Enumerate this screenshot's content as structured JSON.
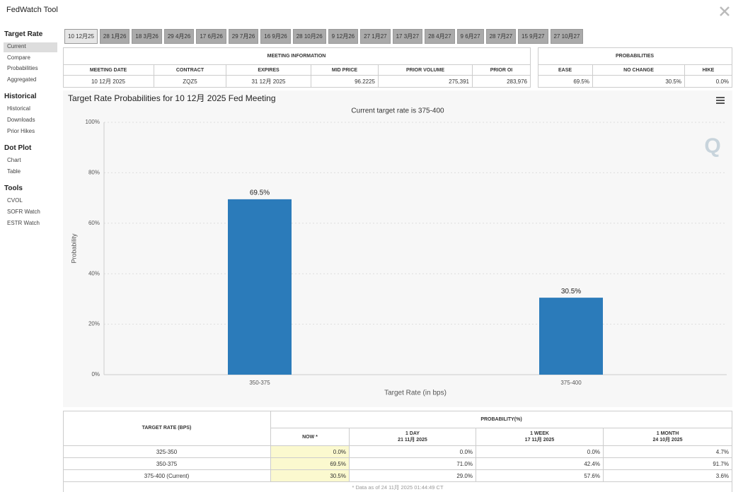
{
  "header": {
    "title": "FedWatch Tool"
  },
  "sidebar": [
    {
      "heading": "Target Rate",
      "items": [
        "Current",
        "Compare",
        "Probabilities",
        "Aggregated"
      ]
    },
    {
      "heading": "Historical",
      "items": [
        "Historical",
        "Downloads",
        "Prior Hikes"
      ]
    },
    {
      "heading": "Dot Plot",
      "items": [
        "Chart",
        "Table"
      ]
    },
    {
      "heading": "Tools",
      "items": [
        "CVOL",
        "SOFR Watch",
        "ESTR Watch"
      ]
    }
  ],
  "tabs": [
    "10 12月25",
    "28 1月26",
    "18 3月26",
    "29 4月26",
    "17 6月26",
    "29 7月26",
    "16 9月26",
    "28 10月26",
    "9 12月26",
    "27 1月27",
    "17 3月27",
    "28 4月27",
    "9 6月27",
    "28 7月27",
    "15 9月27",
    "27 10月27"
  ],
  "meeting_info": {
    "title": "MEETING INFORMATION",
    "columns": [
      "MEETING DATE",
      "CONTRACT",
      "EXPIRES",
      "MID PRICE",
      "PRIOR VOLUME",
      "PRIOR OI"
    ],
    "row": [
      "10 12月 2025",
      "ZQZ5",
      "31 12月 2025",
      "96.2225",
      "275,391",
      "283,976"
    ]
  },
  "probabilities": {
    "title": "PROBABILITIES",
    "columns": [
      "EASE",
      "NO CHANGE",
      "HIKE"
    ],
    "row": [
      "69.5%",
      "30.5%",
      "0.0%"
    ]
  },
  "chart_data": {
    "type": "bar",
    "title": "Target Rate Probabilities for 10 12月 2025 Fed Meeting",
    "subtitle": "Current target rate is 375-400",
    "x_label": "Target Rate (in bps)",
    "y_label": "Probability",
    "categories": [
      "350-375",
      "375-400"
    ],
    "values": [
      69.5,
      30.5
    ],
    "value_labels": [
      "69.5%",
      "30.5%"
    ],
    "color": "#2b7bba",
    "ylim": [
      0,
      100
    ],
    "yticks": [
      {
        "value": 0,
        "label": "0%"
      },
      {
        "value": 20,
        "label": "20%"
      },
      {
        "value": 40,
        "label": "40%"
      },
      {
        "value": 60,
        "label": "60%"
      },
      {
        "value": 80,
        "label": "80%"
      },
      {
        "value": 100,
        "label": "100%"
      }
    ],
    "grid": true
  },
  "probability_table": {
    "row_header": "TARGET RATE (BPS)",
    "title": "PROBABILITY(%)",
    "columns": [
      {
        "label": "NOW *"
      },
      {
        "label": "1 DAY",
        "date": "21 11月 2025"
      },
      {
        "label": "1 WEEK",
        "date": "17 11月 2025"
      },
      {
        "label": "1 MONTH",
        "date": "24 10月 2025"
      }
    ],
    "rows": [
      {
        "rate": "325-350",
        "values": [
          "0.0%",
          "0.0%",
          "0.0%",
          "4.7%"
        ]
      },
      {
        "rate": "350-375",
        "values": [
          "69.5%",
          "71.0%",
          "42.4%",
          "91.7%"
        ]
      },
      {
        "rate": "375-400 (Current)",
        "values": [
          "30.5%",
          "29.0%",
          "57.6%",
          "3.6%"
        ]
      }
    ],
    "footnote": "* Data as of 24 11月 2025 01:44:49 CT"
  }
}
